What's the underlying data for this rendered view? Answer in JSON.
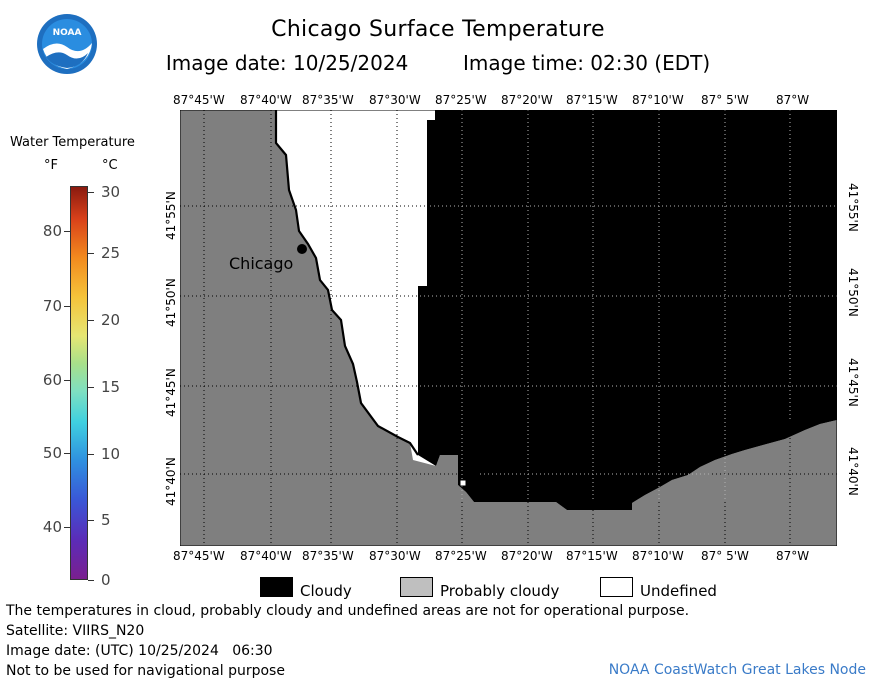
{
  "header": {
    "title": "Chicago Surface Temperature",
    "image_date": "Image date: 10/25/2024",
    "image_time": "Image time: 02:30 (EDT)",
    "logo_text": "NOAA"
  },
  "scale": {
    "title": "Water Temperature",
    "unit_f": "°F",
    "unit_c": "°C",
    "f_ticks": [
      "40",
      "50",
      "60",
      "70",
      "80"
    ],
    "c_ticks": [
      "0",
      "5",
      "10",
      "15",
      "20",
      "25",
      "30"
    ]
  },
  "map": {
    "lon_labels": [
      "87°45'W",
      "87°40'W",
      "87°35'W",
      "87°30'W",
      "87°25'W",
      "87°20'W",
      "87°15'W",
      "87°10'W",
      "87° 5'W",
      "87°W"
    ],
    "lat_labels": [
      "41°55'N",
      "41°50'N",
      "41°45'N",
      "41°40'N"
    ],
    "city_label": "Chicago",
    "colors": {
      "land": "#7f7f7f",
      "cloudy": "#000000",
      "undefined": "#ffffff",
      "grid": "#000000"
    }
  },
  "legend": {
    "items": [
      {
        "label": "Cloudy",
        "color": "#000000"
      },
      {
        "label": "Probably cloudy",
        "color": "#bfbfbf"
      },
      {
        "label": "Undefined",
        "color": "#ffffff"
      }
    ]
  },
  "footer": {
    "note": "The temperatures in cloud, probably cloudy and undefined areas are not for operational purpose.",
    "satellite": "Satellite: VIIRS_N20",
    "utc_date": "Image date: (UTC) 10/25/2024   06:30",
    "nav_warning": "Not to be used for navigational purpose",
    "credit": "NOAA CoastWatch Great Lakes Node"
  }
}
